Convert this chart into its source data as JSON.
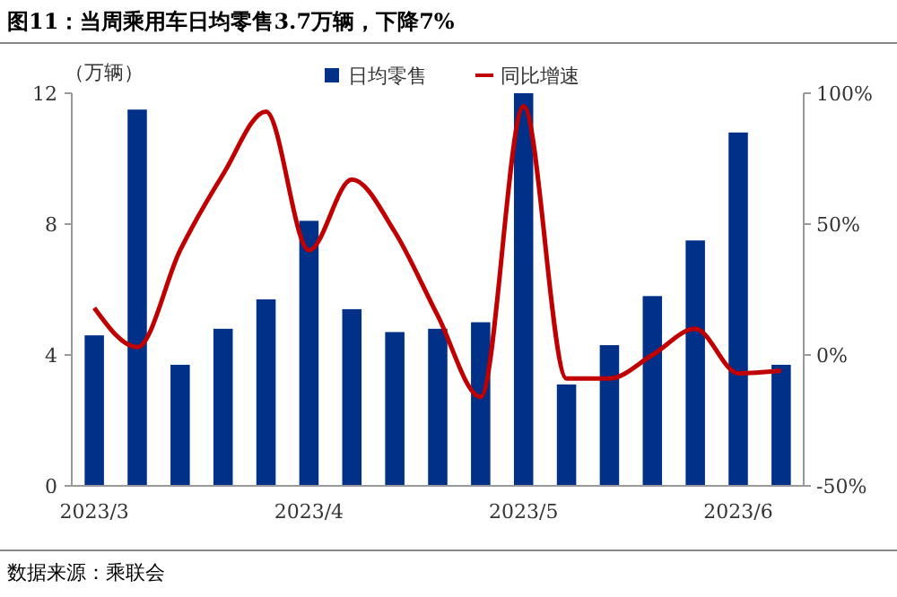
{
  "chart_data": {
    "type": "bar",
    "title": "图11：当周乘用车日均零售3.7万辆，下降7%",
    "ylabel": "（万辆）",
    "categories": [
      "2023/3",
      null,
      null,
      null,
      null,
      "2023/4",
      null,
      null,
      null,
      null,
      "2023/5",
      null,
      null,
      null,
      null,
      "2023/6",
      null
    ],
    "series": [
      {
        "name": "日均零售",
        "color": "#003087",
        "values": [
          4.6,
          11.5,
          3.7,
          4.8,
          5.7,
          8.1,
          5.4,
          4.7,
          4.8,
          5.0,
          12.0,
          3.1,
          4.3,
          5.8,
          7.5,
          10.8,
          3.7
        ]
      },
      {
        "name": "同比增速",
        "type": "line",
        "axis": "y2",
        "color": "#c00000",
        "values": [
          18,
          3,
          40,
          69,
          93,
          40,
          67,
          47,
          15,
          -16,
          95,
          -9,
          -9,
          0,
          10,
          -7,
          -6
        ]
      }
    ],
    "ylim": [
      0,
      12
    ],
    "yticks": [
      0,
      4,
      8,
      12
    ],
    "y2lim": [
      -50,
      100
    ],
    "y2ticks": [
      {
        "value": -50,
        "label": "-50%"
      },
      {
        "value": 0,
        "label": "0%"
      },
      {
        "value": 50,
        "label": "50%"
      },
      {
        "value": 100,
        "label": "100%"
      }
    ],
    "legend": "top",
    "grid": false,
    "annotations": [
      "数据来源：乘联会"
    ]
  }
}
